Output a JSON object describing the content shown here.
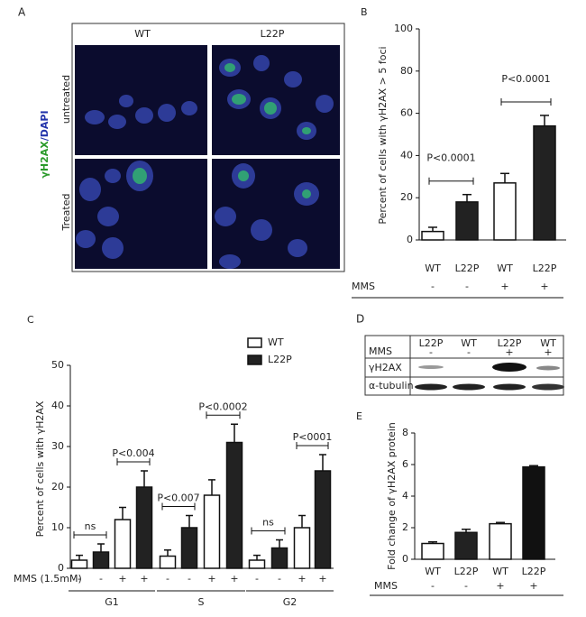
{
  "panel_a": {
    "letter": "A",
    "columns": [
      "WT",
      "L22P"
    ],
    "rows": [
      "untreated",
      "Treated"
    ],
    "stain": [
      "γH2AX",
      "/DAPI"
    ]
  },
  "panel_d": {
    "letter": "D",
    "lanes": [
      "L22P",
      "WT",
      "L22P",
      "WT"
    ],
    "mms_label": "MMS",
    "mms": [
      "-",
      "-",
      "+",
      "+"
    ],
    "rows": [
      "γH2AX",
      "α-tubulin"
    ]
  },
  "chart_data": [
    {
      "panel": "B",
      "type": "bar",
      "ylabel": "Percent of cells with γH2AX > 5 foci",
      "categories": [
        "WT",
        "L22P",
        "WT",
        "L22P"
      ],
      "values": [
        4,
        18,
        27,
        54
      ],
      "errors": [
        2,
        3.5,
        4.5,
        5
      ],
      "colors": [
        "#ffffff",
        "#222222",
        "#ffffff",
        "#222222"
      ],
      "ylim": [
        0,
        100
      ],
      "yticks": [
        0,
        20,
        40,
        60,
        80,
        100
      ],
      "mms_label": "MMS",
      "mms": [
        "-",
        "-",
        "+",
        "+"
      ],
      "annotations": [
        "P<0.0001",
        "P<0.0001"
      ]
    },
    {
      "panel": "C",
      "type": "grouped_bar",
      "ylabel": "Percent of cells with γH2AX",
      "groups": [
        "G1",
        "S",
        "G2"
      ],
      "series": [
        {
          "name": "WT",
          "color": "#ffffff",
          "values": [
            2,
            3,
            2
          ],
          "errors": [
            1.2,
            1.5,
            1.2
          ],
          "treated_values": [
            12,
            18,
            10
          ],
          "treated_errors": [
            3,
            3.8,
            3
          ]
        },
        {
          "name": "L22P",
          "color": "#222222",
          "values": [
            4,
            10,
            5
          ],
          "errors": [
            2,
            3,
            2
          ],
          "treated_values": [
            20,
            31,
            24
          ],
          "treated_errors": [
            4,
            4.5,
            4
          ]
        }
      ],
      "ylim": [
        0,
        50
      ],
      "yticks": [
        0,
        10,
        20,
        30,
        40,
        50
      ],
      "mms_label": "MMS (1.5mM)",
      "mms": [
        "-",
        "-",
        "+",
        "+"
      ],
      "annotations": [
        "ns",
        "P<0.004",
        "P<0.007",
        "P<0.0002",
        "ns",
        "P<0001"
      ]
    },
    {
      "panel": "E",
      "type": "bar",
      "ylabel": "Fold change of γH2AX protein",
      "categories": [
        "WT",
        "L22P",
        "WT",
        "L22P"
      ],
      "values": [
        1,
        1.7,
        2.25,
        5.85
      ],
      "errors": [
        0.1,
        0.2,
        0.08,
        0.08
      ],
      "colors": [
        "#ffffff",
        "#222222",
        "#ffffff",
        "#111111"
      ],
      "ylim": [
        0,
        8
      ],
      "yticks": [
        0,
        2,
        4,
        6,
        8
      ],
      "mms_label": "MMS",
      "mms": [
        "-",
        "-",
        "+",
        "+"
      ]
    }
  ]
}
